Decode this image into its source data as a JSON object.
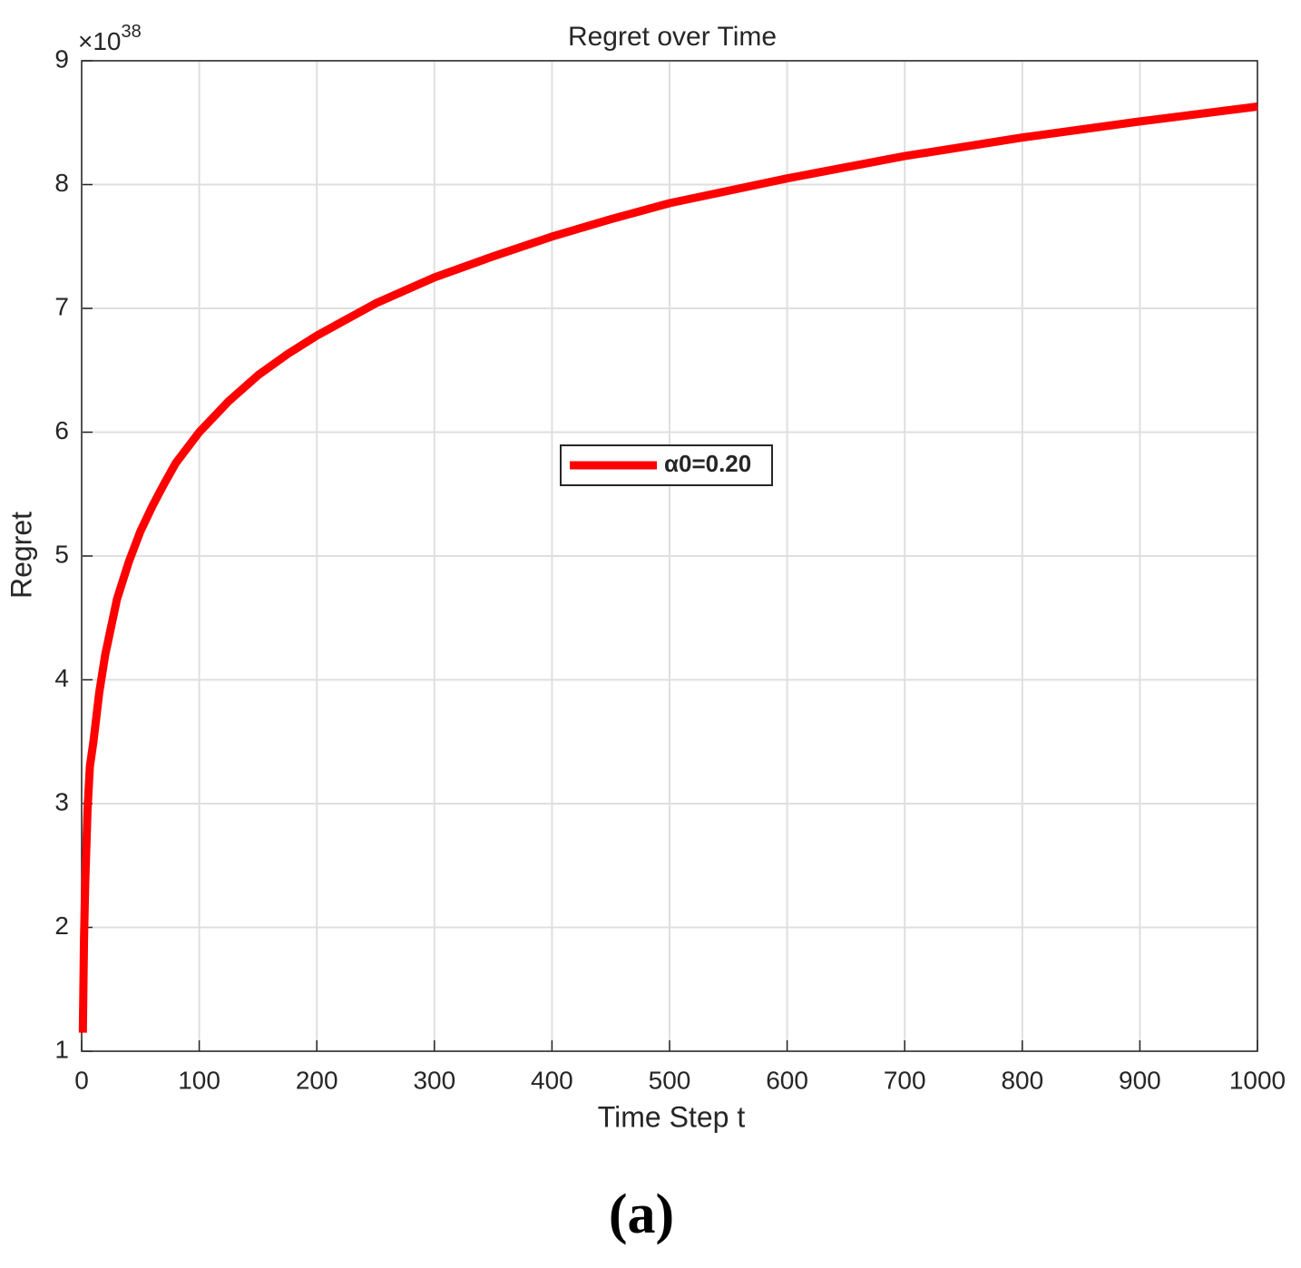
{
  "chart_data": {
    "type": "line",
    "title": "Regret over Time",
    "xlabel": "Time Step t",
    "ylabel": "Regret",
    "y_scale_label": "×10",
    "y_scale_exponent": "38",
    "x": [
      1,
      2,
      3,
      5,
      7,
      10,
      15,
      20,
      30,
      40,
      50,
      60,
      70,
      80,
      100,
      125,
      150,
      175,
      200,
      250,
      300,
      350,
      400,
      450,
      500,
      600,
      700,
      800,
      900,
      1000
    ],
    "series": [
      {
        "name": "α0=0.20",
        "color": "#ff0000",
        "values": [
          1.15,
          1.9,
          2.35,
          2.95,
          3.3,
          3.5,
          3.9,
          4.2,
          4.65,
          4.95,
          5.2,
          5.4,
          5.58,
          5.75,
          6.0,
          6.25,
          6.46,
          6.63,
          6.78,
          7.04,
          7.25,
          7.42,
          7.58,
          7.72,
          7.85,
          8.05,
          8.23,
          8.38,
          8.51,
          8.63
        ]
      }
    ],
    "xlim": [
      0,
      1000
    ],
    "xticks": [
      0,
      100,
      200,
      300,
      400,
      500,
      600,
      700,
      800,
      900,
      1000
    ],
    "ylim": [
      1,
      9
    ],
    "yticks": [
      1,
      2,
      3,
      4,
      5,
      6,
      7,
      8,
      9
    ],
    "grid": true,
    "legend": "center"
  },
  "caption": "(a)"
}
